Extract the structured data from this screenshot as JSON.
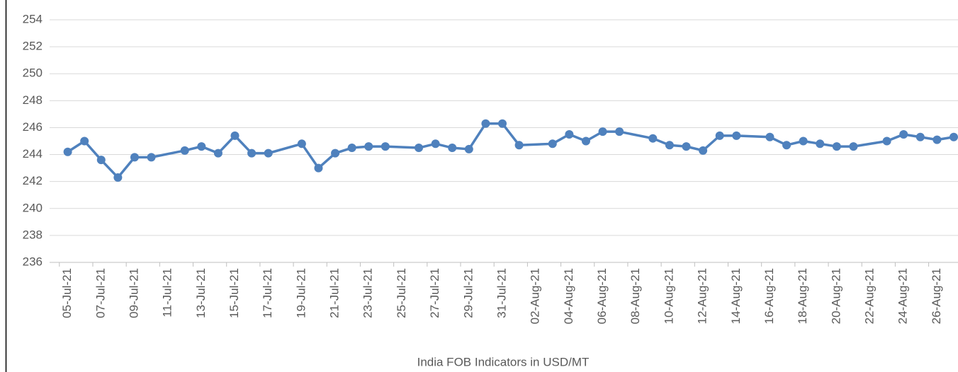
{
  "chart_data": {
    "type": "line",
    "color": "#4f81bd",
    "grid": true,
    "x_label": "India FOB Indicators in USD/MT",
    "x": [
      "05-Jul-21",
      "06-Jul-21",
      "07-Jul-21",
      "08-Jul-21",
      "09-Jul-21",
      "10-Jul-21",
      "12-Jul-21",
      "13-Jul-21",
      "14-Jul-21",
      "15-Jul-21",
      "16-Jul-21",
      "17-Jul-21",
      "19-Jul-21",
      "20-Jul-21",
      "21-Jul-21",
      "22-Jul-21",
      "23-Jul-21",
      "24-Jul-21",
      "26-Jul-21",
      "27-Jul-21",
      "28-Jul-21",
      "29-Jul-21",
      "30-Jul-21",
      "31-Jul-21",
      "01-Aug-21",
      "03-Aug-21",
      "04-Aug-21",
      "05-Aug-21",
      "06-Aug-21",
      "07-Aug-21",
      "09-Aug-21",
      "10-Aug-21",
      "11-Aug-21",
      "12-Aug-21",
      "13-Aug-21",
      "14-Aug-21",
      "16-Aug-21",
      "17-Aug-21",
      "18-Aug-21",
      "19-Aug-21",
      "20-Aug-21",
      "21-Aug-21",
      "23-Aug-21",
      "24-Aug-21",
      "25-Aug-21",
      "26-Aug-21",
      "27-Aug-21"
    ],
    "values": [
      244.2,
      245.0,
      243.6,
      242.3,
      243.8,
      243.8,
      244.3,
      244.6,
      244.1,
      245.4,
      244.1,
      244.1,
      244.8,
      243.0,
      244.1,
      244.5,
      244.6,
      244.6,
      244.5,
      244.8,
      244.5,
      244.4,
      246.3,
      246.3,
      244.7,
      244.8,
      245.5,
      245.0,
      245.7,
      245.7,
      245.2,
      244.7,
      244.6,
      244.3,
      245.4,
      245.4,
      245.3,
      244.7,
      245.0,
      244.8,
      244.6,
      244.6,
      245.0,
      245.5,
      245.3,
      245.1,
      245.3
    ],
    "xlim": [
      "04-Jul-21",
      "27-Aug-21"
    ],
    "xticks": [
      "05-Jul-21",
      "07-Jul-21",
      "09-Jul-21",
      "11-Jul-21",
      "13-Jul-21",
      "15-Jul-21",
      "17-Jul-21",
      "19-Jul-21",
      "21-Jul-21",
      "23-Jul-21",
      "25-Jul-21",
      "27-Jul-21",
      "29-Jul-21",
      "31-Jul-21",
      "02-Aug-21",
      "04-Aug-21",
      "06-Aug-21",
      "08-Aug-21",
      "10-Aug-21",
      "12-Aug-21",
      "14-Aug-21",
      "16-Aug-21",
      "18-Aug-21",
      "20-Aug-21",
      "22-Aug-21",
      "24-Aug-21",
      "26-Aug-21"
    ],
    "ylim": [
      236,
      254
    ],
    "yticks": [
      236,
      238,
      240,
      242,
      244,
      246,
      248,
      250,
      252,
      254
    ]
  }
}
